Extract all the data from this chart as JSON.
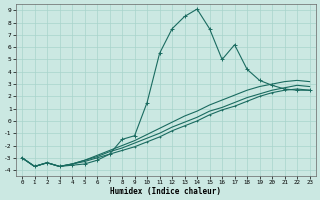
{
  "xlabel": "Humidex (Indice chaleur)",
  "bg_color": "#cbe8e2",
  "grid_color": "#a8d4cc",
  "line_color": "#1a6b60",
  "xlim": [
    -0.5,
    23.5
  ],
  "ylim": [
    -4.5,
    9.5
  ],
  "xticks": [
    0,
    1,
    2,
    3,
    4,
    5,
    6,
    7,
    8,
    9,
    10,
    11,
    12,
    13,
    14,
    15,
    16,
    17,
    18,
    19,
    20,
    21,
    22,
    23
  ],
  "yticks": [
    -4,
    -3,
    -2,
    -1,
    0,
    1,
    2,
    3,
    4,
    5,
    6,
    7,
    8,
    9
  ],
  "peak_x": [
    0,
    1,
    2,
    3,
    4,
    5,
    6,
    7,
    8,
    9,
    10,
    11,
    12,
    13,
    14,
    15,
    16,
    17,
    18,
    19,
    20,
    21,
    22,
    23
  ],
  "peak_y": [
    -3,
    -3.7,
    -3.4,
    -3.7,
    -3.6,
    -3.5,
    -3.2,
    -2.7,
    -1.5,
    -1.2,
    1.5,
    5.5,
    7.5,
    8.5,
    9.1,
    7.5,
    5.0,
    6.2,
    4.2,
    3.3,
    2.9,
    2.6,
    2.5,
    2.5
  ],
  "lin1_x": [
    0,
    1,
    2,
    3,
    4,
    5,
    6,
    7,
    8,
    9,
    10,
    11,
    12,
    13,
    14,
    15,
    16,
    17,
    18,
    19,
    20,
    21,
    22,
    23
  ],
  "lin1_y": [
    -3,
    -3.7,
    -3.4,
    -3.7,
    -3.5,
    -3.3,
    -3.0,
    -2.7,
    -2.4,
    -2.1,
    -1.7,
    -1.3,
    -0.8,
    -0.4,
    0.0,
    0.5,
    0.9,
    1.2,
    1.6,
    2.0,
    2.3,
    2.5,
    2.6,
    2.5
  ],
  "lin2_x": [
    0,
    1,
    2,
    3,
    4,
    5,
    6,
    7,
    8,
    9,
    10,
    11,
    12,
    13,
    14,
    15,
    16,
    17,
    18,
    19,
    20,
    21,
    22,
    23
  ],
  "lin2_y": [
    -3,
    -3.7,
    -3.4,
    -3.7,
    -3.5,
    -3.2,
    -2.9,
    -2.5,
    -2.2,
    -1.8,
    -1.4,
    -1.0,
    -0.5,
    -0.1,
    0.3,
    0.8,
    1.1,
    1.5,
    1.9,
    2.2,
    2.5,
    2.7,
    2.9,
    2.8
  ],
  "lin3_x": [
    0,
    1,
    2,
    3,
    4,
    5,
    6,
    7,
    8,
    9,
    10,
    11,
    12,
    13,
    14,
    15,
    16,
    17,
    18,
    19,
    20,
    21,
    22,
    23
  ],
  "lin3_y": [
    -3,
    -3.7,
    -3.4,
    -3.7,
    -3.5,
    -3.2,
    -2.8,
    -2.4,
    -2.0,
    -1.6,
    -1.1,
    -0.6,
    -0.1,
    0.4,
    0.8,
    1.3,
    1.7,
    2.1,
    2.5,
    2.8,
    3.0,
    3.2,
    3.3,
    3.2
  ]
}
